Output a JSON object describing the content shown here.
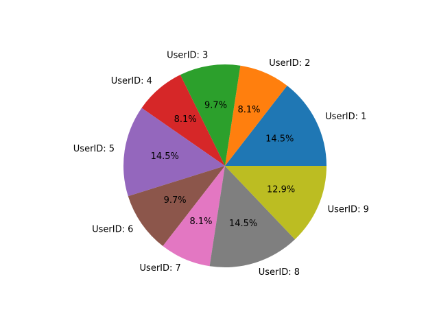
{
  "chart_data": {
    "type": "pie",
    "title": "",
    "categories": [
      "UserID: 1",
      "UserID: 2",
      "UserID: 3",
      "UserID: 4",
      "UserID: 5",
      "UserID: 6",
      "UserID: 7",
      "UserID: 8",
      "UserID: 9"
    ],
    "values": [
      9,
      5,
      6,
      5,
      9,
      6,
      5,
      9,
      8
    ],
    "percent_labels": [
      "14.5%",
      "8.1%",
      "9.7%",
      "8.1%",
      "14.5%",
      "9.7%",
      "8.1%",
      "14.5%",
      "12.9%"
    ],
    "colors": [
      "#1f77b4",
      "#ff7f0e",
      "#2ca02c",
      "#d62728",
      "#9467bd",
      "#8c564b",
      "#e377c2",
      "#7f7f7f",
      "#bcbd22"
    ],
    "start_angle_deg": 0,
    "direction": "counterclockwise",
    "legend": "none"
  }
}
